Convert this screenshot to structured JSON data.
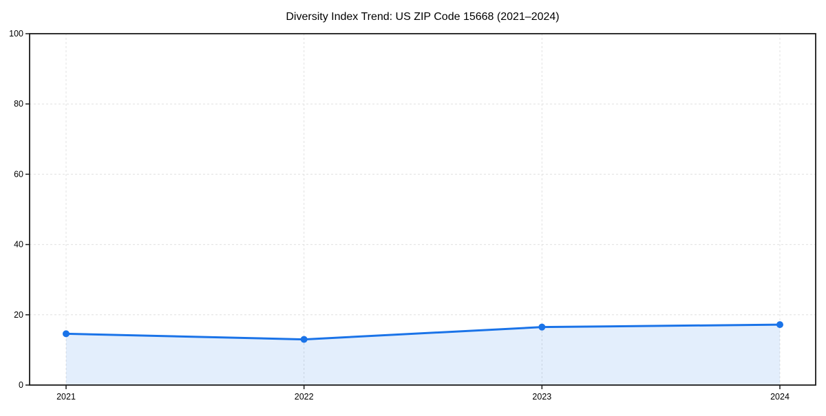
{
  "chart": {
    "title": "Diversity Index Trend: US ZIP Code 15668 (2021–2024)"
  },
  "chart_data": {
    "type": "area",
    "categories": [
      "2021",
      "2022",
      "2023",
      "2024"
    ],
    "values": [
      14.6,
      13.0,
      16.5,
      17.2
    ],
    "series": [
      {
        "name": "Diversity Index",
        "values": [
          14.6,
          13.0,
          16.5,
          17.2
        ]
      }
    ],
    "title": "Diversity Index Trend: US ZIP Code 15668 (2021–2024)",
    "xlabel": "",
    "ylabel": "",
    "ylim": [
      0,
      100
    ],
    "yticks": [
      0,
      20,
      40,
      60,
      80,
      100
    ],
    "grid": true,
    "grid_style": "dashed",
    "legend": false,
    "marker": "circle",
    "colors": {
      "line": "#1a73e8",
      "marker": "#1a73e8",
      "fill": "rgba(26,115,232,0.12)",
      "gridline": "#e0e0e0",
      "spine": "#1a1a1a",
      "background": "#ffffff"
    }
  }
}
